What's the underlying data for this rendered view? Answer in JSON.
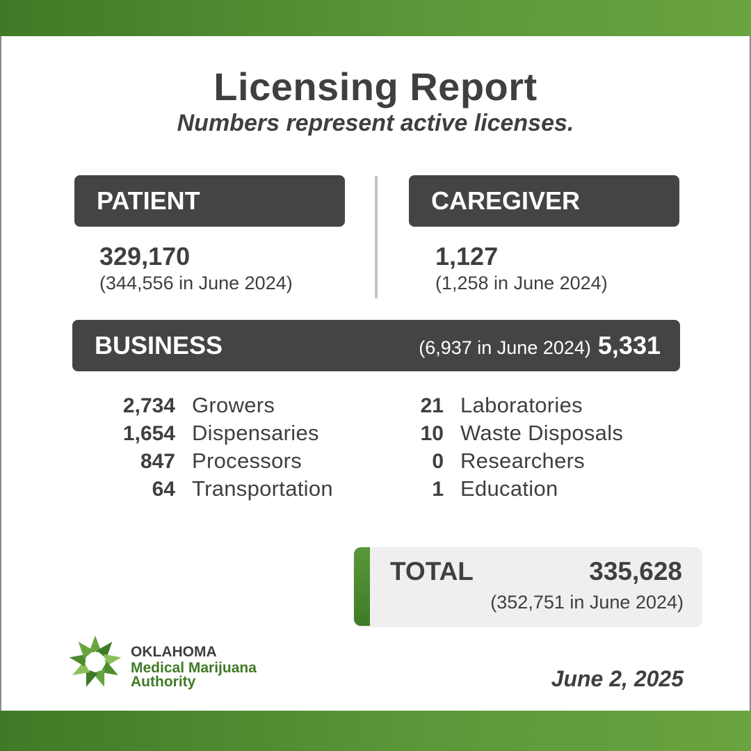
{
  "header": {
    "title": "Licensing Report",
    "subtitle": "Numbers represent active licenses."
  },
  "patient": {
    "label": "PATIENT",
    "count": "329,170",
    "previous": "(344,556 in June 2024)"
  },
  "caregiver": {
    "label": "CAREGIVER",
    "count": "1,127",
    "previous": "(1,258 in June 2024)"
  },
  "business": {
    "label": "BUSINESS",
    "previous": "(6,937 in June 2024)",
    "count": "5,331",
    "left_items": [
      {
        "count": "2,734",
        "label": "Growers"
      },
      {
        "count": "1,654",
        "label": "Dispensaries"
      },
      {
        "count": "847",
        "label": "Processors"
      },
      {
        "count": "64",
        "label": "Transportation"
      }
    ],
    "right_items": [
      {
        "count": "21",
        "label": "Laboratories"
      },
      {
        "count": "10",
        "label": "Waste Disposals"
      },
      {
        "count": "0",
        "label": "Researchers"
      },
      {
        "count": "1",
        "label": "Education"
      }
    ]
  },
  "total": {
    "label": "TOTAL",
    "count": "335,628",
    "previous": "(352,751 in June 2024)"
  },
  "footer": {
    "org_line1": "OKLAHOMA",
    "org_line2": "Medical Marijuana",
    "org_line3": "Authority",
    "logo_icon": "ommа-star-logo-icon",
    "date": "June 2, 2025"
  },
  "colors": {
    "brand_green": "#4f8b30",
    "dark_box": "#444444",
    "text": "#3f3f3f"
  }
}
